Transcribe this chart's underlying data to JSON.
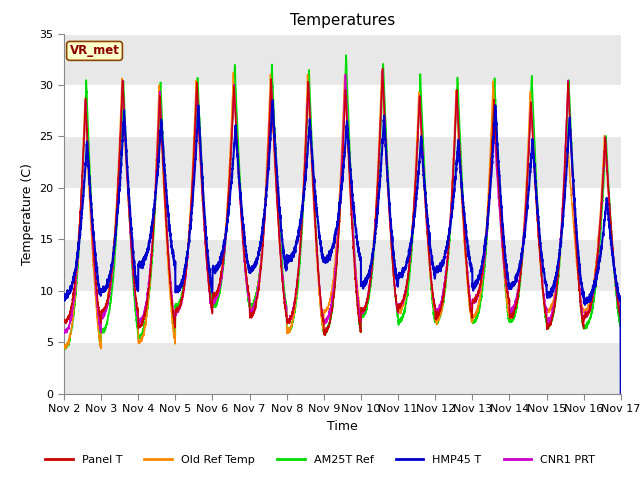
{
  "title": "Temperatures",
  "xlabel": "Time",
  "ylabel": "Temperature (C)",
  "ylim": [
    0,
    35
  ],
  "yticks": [
    0,
    5,
    10,
    15,
    20,
    25,
    30,
    35
  ],
  "xtick_labels": [
    "Nov 2",
    "Nov 3",
    "Nov 4",
    "Nov 5",
    "Nov 6",
    "Nov 7",
    "Nov 8",
    "Nov 9",
    "Nov 10",
    "Nov 11",
    "Nov 12",
    "Nov 13",
    "Nov 14",
    "Nov 15",
    "Nov 16",
    "Nov 17"
  ],
  "station_label": "VR_met",
  "legend_entries": [
    "Panel T",
    "Old Ref Temp",
    "AM25T Ref",
    "HMP45 T",
    "CNR1 PRT"
  ],
  "line_colors": [
    "#cc0000",
    "#ff8800",
    "#00dd00",
    "#0000cc",
    "#cc00cc"
  ],
  "line_widths": [
    1.0,
    1.0,
    1.2,
    1.5,
    1.2
  ],
  "background_color": "#ffffff",
  "plot_bg_color": "#e8e8e8",
  "grid_color": "#ffffff",
  "num_days": 15,
  "points_per_day": 288,
  "title_fontsize": 11,
  "axis_label_fontsize": 9,
  "tick_fontsize": 8,
  "band_ranges": [
    [
      0,
      5
    ],
    [
      5,
      10
    ],
    [
      10,
      15
    ],
    [
      15,
      20
    ],
    [
      20,
      25
    ],
    [
      25,
      30
    ],
    [
      30,
      35
    ]
  ],
  "band_colors": [
    "#e8e8e8",
    "#ffffff",
    "#e8e8e8",
    "#ffffff",
    "#e8e8e8",
    "#ffffff",
    "#e8e8e8"
  ]
}
